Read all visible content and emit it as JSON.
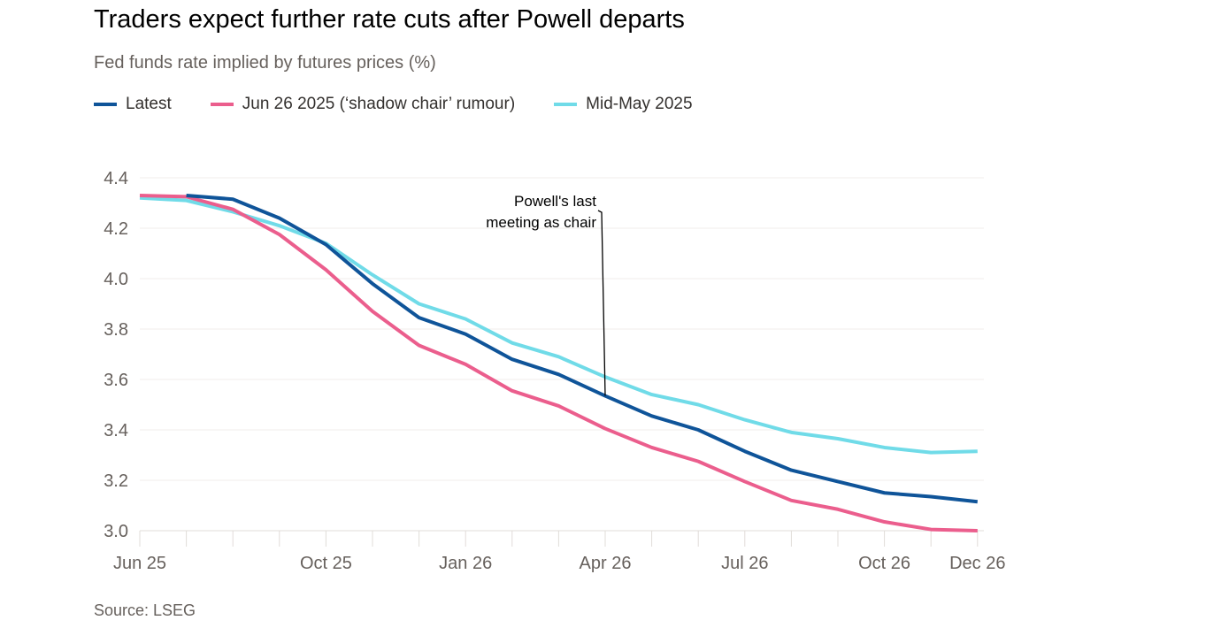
{
  "chart_data": {
    "type": "line",
    "title": "Traders expect further rate cuts after Powell departs",
    "subtitle": "Fed funds rate implied by futures prices (%)",
    "x": [
      "Jun 25",
      "Jul 25",
      "Aug 25",
      "Sep 25",
      "Oct 25",
      "Nov 25",
      "Dec 25",
      "Jan 26",
      "Feb 26",
      "Mar 26",
      "Apr 26",
      "May 26",
      "Jun 26",
      "Jul 26",
      "Aug 26",
      "Sep 26",
      "Oct 26",
      "Nov 26",
      "Dec 26"
    ],
    "x_tick_labels": [
      "Jun 25",
      "Oct 25",
      "Jan 26",
      "Apr 26",
      "Jul 26",
      "Oct 26",
      "Dec 26"
    ],
    "y_ticks": [
      "3.0",
      "3.2",
      "3.4",
      "3.6",
      "3.8",
      "4.0",
      "4.2",
      "4.4"
    ],
    "ylim": [
      3.0,
      4.4
    ],
    "grid": true,
    "legend_placement": "top-left",
    "series": [
      {
        "name": "Latest",
        "color": "#0f5499",
        "values": [
          null,
          4.33,
          4.315,
          4.24,
          4.135,
          3.98,
          3.845,
          3.78,
          3.68,
          3.62,
          3.535,
          3.455,
          3.4,
          3.315,
          3.24,
          3.195,
          3.15,
          3.135,
          3.115
        ]
      },
      {
        "name": "Jun 26 2025 (‘shadow chair’ rumour)",
        "color": "#eb5e8d",
        "values": [
          4.33,
          4.325,
          4.275,
          4.175,
          4.035,
          3.87,
          3.735,
          3.66,
          3.555,
          3.495,
          3.405,
          3.33,
          3.275,
          3.195,
          3.12,
          3.085,
          3.035,
          3.005,
          3.0
        ]
      },
      {
        "name": "Mid-May 2025",
        "color": "#70dbe8",
        "values": [
          4.32,
          4.31,
          4.265,
          4.21,
          4.14,
          4.015,
          3.9,
          3.84,
          3.745,
          3.69,
          3.61,
          3.54,
          3.5,
          3.44,
          3.39,
          3.365,
          3.33,
          3.31,
          3.315
        ]
      }
    ],
    "annotation": {
      "lines": [
        "Powell's last",
        "meeting as chair"
      ],
      "x": "Apr 26",
      "series": "Latest"
    },
    "source": "Source: LSEG"
  }
}
